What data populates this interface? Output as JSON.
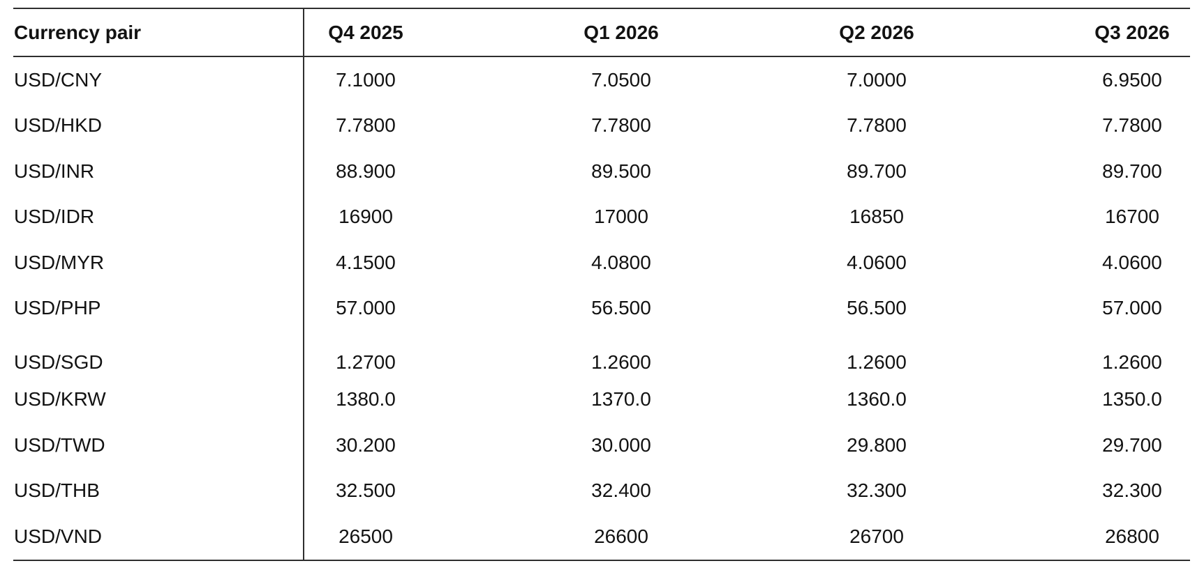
{
  "table": {
    "columns": [
      "Currency pair",
      "Q4 2025",
      "Q1 2026",
      "Q2 2026",
      "Q3 2026"
    ],
    "rows": [
      {
        "pair": "USD/CNY",
        "values": [
          "7.1000",
          "7.0500",
          "7.0000",
          "6.9500"
        ]
      },
      {
        "pair": "USD/HKD",
        "values": [
          "7.7800",
          "7.7800",
          "7.7800",
          "7.7800"
        ]
      },
      {
        "pair": "USD/INR",
        "values": [
          "88.900",
          "89.500",
          "89.700",
          "89.700"
        ]
      },
      {
        "pair": "USD/IDR",
        "values": [
          "16900",
          "17000",
          "16850",
          "16700"
        ]
      },
      {
        "pair": "USD/MYR",
        "values": [
          "4.1500",
          "4.0800",
          "4.0600",
          "4.0600"
        ]
      },
      {
        "pair": "USD/PHP",
        "values": [
          "57.000",
          "56.500",
          "56.500",
          "57.000"
        ]
      },
      {
        "pair": "USD/SGD",
        "values": [
          "1.2700",
          "1.2600",
          "1.2600",
          "1.2600"
        ]
      },
      {
        "pair": "USD/KRW",
        "values": [
          "1380.0",
          "1370.0",
          "1360.0",
          "1350.0"
        ]
      },
      {
        "pair": "USD/TWD",
        "values": [
          "30.200",
          "30.000",
          "29.800",
          "29.700"
        ]
      },
      {
        "pair": "USD/THB",
        "values": [
          "32.500",
          "32.400",
          "32.300",
          "32.300"
        ]
      },
      {
        "pair": "USD/VND",
        "values": [
          "26500",
          "26600",
          "26700",
          "26800"
        ]
      }
    ]
  },
  "chart_data": {
    "type": "table",
    "title": "",
    "columns": [
      "Currency pair",
      "Q4 2025",
      "Q1 2026",
      "Q2 2026",
      "Q3 2026"
    ],
    "rows": [
      [
        "USD/CNY",
        7.1,
        7.05,
        7.0,
        6.95
      ],
      [
        "USD/HKD",
        7.78,
        7.78,
        7.78,
        7.78
      ],
      [
        "USD/INR",
        88.9,
        89.5,
        89.7,
        89.7
      ],
      [
        "USD/IDR",
        16900,
        17000,
        16850,
        16700
      ],
      [
        "USD/MYR",
        4.15,
        4.08,
        4.06,
        4.06
      ],
      [
        "USD/PHP",
        57.0,
        56.5,
        56.5,
        57.0
      ],
      [
        "USD/SGD",
        1.27,
        1.26,
        1.26,
        1.26
      ],
      [
        "USD/KRW",
        1380.0,
        1370.0,
        1360.0,
        1350.0
      ],
      [
        "USD/TWD",
        30.2,
        30.0,
        29.8,
        29.7
      ],
      [
        "USD/THB",
        32.5,
        32.4,
        32.3,
        32.3
      ],
      [
        "USD/VND",
        26500,
        26600,
        26700,
        26800
      ]
    ]
  },
  "colors": {
    "text": "#121212",
    "line": "#2e2e2e",
    "background": "#ffffff"
  }
}
